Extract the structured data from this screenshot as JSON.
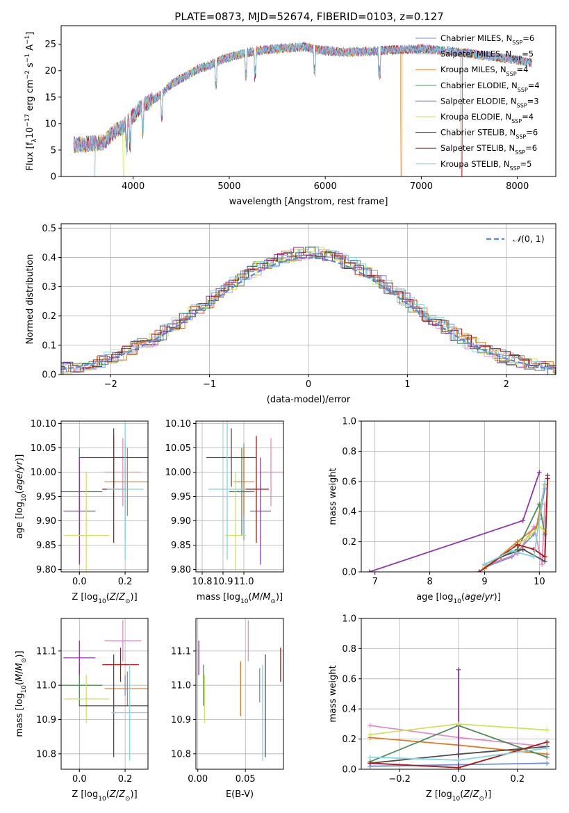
{
  "figure": {
    "title": "PLATE=0873, MJD=52674, FIBERID=0103, z=0.127"
  },
  "series_styles": [
    {
      "label": "Chabrier MILES, N",
      "sub": "SSP",
      "suffix": "=6",
      "color": "#6b8ee0"
    },
    {
      "label": "Salpeter MILES, N",
      "sub": "SSP",
      "suffix": "=5",
      "color": "#e48bc4"
    },
    {
      "label": "Kroupa MILES, N",
      "sub": "SSP",
      "suffix": "=4",
      "color": "#e07b22"
    },
    {
      "label": "Chabrier ELODIE, N",
      "sub": "SSP",
      "suffix": "=4",
      "color": "#4f8a5b"
    },
    {
      "label": "Salpeter ELODIE, N",
      "sub": "SSP",
      "suffix": "=3",
      "color": "#8e35b0"
    },
    {
      "label": "Kroupa ELODIE, N",
      "sub": "SSP",
      "suffix": "=4",
      "color": "#cfe35a"
    },
    {
      "label": "Chabrier STELIB, N",
      "sub": "SSP",
      "suffix": "=6",
      "color": "#4d4d4d"
    },
    {
      "label": "Salpeter STELIB, N",
      "sub": "SSP",
      "suffix": "=6",
      "color": "#b01818"
    },
    {
      "label": "Kroupa STELIB, N",
      "sub": "SSP",
      "suffix": "=5",
      "color": "#7fd6de"
    }
  ],
  "chart_data": [
    {
      "id": "spectrum",
      "type": "line",
      "xlabel": "wavelength [Angstrom, rest frame]",
      "ylabel": "Flux [f",
      "ylabel_parts": [
        "Flux [f",
        "λ",
        "10",
        "−17",
        " erg cm",
        "−2",
        " s",
        "−1",
        " A",
        "−1",
        "]"
      ],
      "xlim": [
        3250,
        8400
      ],
      "ylim": [
        0,
        28.5
      ],
      "xticks": [
        4000,
        5000,
        6000,
        7000,
        8000
      ],
      "yticks": [
        0,
        5,
        10,
        15,
        20,
        25
      ],
      "spectrum_envelope": {
        "x": [
          3400,
          3600,
          3700,
          3800,
          3900,
          4000,
          4100,
          4200,
          4300,
          4400,
          4500,
          4600,
          4700,
          4800,
          4900,
          5000,
          5200,
          5400,
          5600,
          5800,
          5900,
          6000,
          6200,
          6400,
          6600,
          6800,
          7000,
          7200,
          7400,
          7600,
          7800,
          8000,
          8150
        ],
        "y": [
          6.0,
          6.3,
          6.5,
          8.5,
          9.5,
          11.5,
          13.5,
          14.5,
          15.5,
          17.5,
          18.5,
          19.5,
          20.5,
          21.0,
          22.0,
          22.5,
          23.5,
          24.0,
          24.3,
          24.5,
          24.0,
          23.8,
          23.5,
          23.6,
          23.8,
          24.0,
          24.2,
          23.8,
          23.5,
          23.0,
          22.5,
          22.0,
          21.5
        ]
      },
      "legend_position": "upper right"
    },
    {
      "id": "residuals",
      "type": "histogram",
      "xlabel": "(data-model)/error",
      "ylabel": "Normed distribution",
      "xlim": [
        -2.5,
        2.5
      ],
      "ylim": [
        0,
        0.515
      ],
      "xticks": [
        -2,
        -1,
        0,
        1,
        2
      ],
      "yticks": [
        0.0,
        0.1,
        0.2,
        0.3,
        0.4,
        0.5
      ],
      "reference_curve": "N(0,1)",
      "reference_label": "(0, 1)",
      "grid": true,
      "legend_position": "upper right"
    },
    {
      "id": "age_vs_Z",
      "type": "scatter",
      "xlabel": "Z [log10(Z/Z☉)]",
      "ylabel": "age  [log10(age/yr)]",
      "xlim": [
        -0.08,
        0.3
      ],
      "ylim": [
        9.795,
        10.105
      ],
      "xticks": [
        0.0,
        0.2
      ],
      "yticks": [
        9.8,
        9.85,
        9.9,
        9.95,
        10.0,
        10.05,
        10.1
      ],
      "points": [
        {
          "series": 0,
          "x": 0.2,
          "xerr": 0.0,
          "y": 9.96,
          "yerr": 0.1
        },
        {
          "series": 1,
          "x": 0.19,
          "xerr": 0.08,
          "y": 10.0,
          "yerr": 0.07
        },
        {
          "series": 2,
          "x": 0.21,
          "xerr": 0.1,
          "y": 9.98,
          "yerr": 0.07
        },
        {
          "series": 3,
          "x": 0.0,
          "xerr": 0.1,
          "y": 9.96,
          "yerr": 0.09
        },
        {
          "series": 4,
          "x": 0.0,
          "xerr": 0.07,
          "y": 9.92,
          "yerr": 0.11
        },
        {
          "series": 5,
          "x": 0.03,
          "xerr": 0.1,
          "y": 9.87,
          "yerr": 0.13
        },
        {
          "series": 6,
          "x": 0.15,
          "xerr": 0.15,
          "y": 10.03,
          "yerr": 0.06
        },
        {
          "series": 7,
          "x": 0.15,
          "xerr": 0.05,
          "y": 9.965,
          "yerr": 0.11
        },
        {
          "series": 8,
          "x": 0.2,
          "xerr": 0.08,
          "y": 9.965,
          "yerr": 0.145
        }
      ],
      "grid": true
    },
    {
      "id": "age_vs_mass",
      "type": "scatter",
      "xlabel": "mass [log10(M/M☉)]",
      "xlim": [
        10.77,
        11.19
      ],
      "ylim": [
        9.795,
        10.105
      ],
      "xticks": [
        10.8,
        10.9,
        11.0
      ],
      "yticks": [
        9.8,
        9.85,
        9.9,
        9.95,
        10.0,
        10.05,
        10.1
      ],
      "points": [
        {
          "series": 0,
          "x": 11.0,
          "xerr": 0.03,
          "y": 9.96,
          "yerr": 0.1
        },
        {
          "series": 1,
          "x": 11.13,
          "xerr": 0.06,
          "y": 10.0,
          "yerr": 0.07
        },
        {
          "series": 2,
          "x": 11.0,
          "xerr": 0.05,
          "y": 9.98,
          "yerr": 0.07
        },
        {
          "series": 3,
          "x": 10.99,
          "xerr": 0.06,
          "y": 9.96,
          "yerr": 0.09
        },
        {
          "series": 4,
          "x": 11.08,
          "xerr": 0.05,
          "y": 9.92,
          "yerr": 0.11
        },
        {
          "series": 5,
          "x": 10.96,
          "xerr": 0.05,
          "y": 9.87,
          "yerr": 0.13
        },
        {
          "series": 6,
          "x": 10.94,
          "xerr": 0.12,
          "y": 10.03,
          "yerr": 0.06
        },
        {
          "series": 7,
          "x": 11.06,
          "xerr": 0.06,
          "y": 9.965,
          "yerr": 0.11
        },
        {
          "series": 8,
          "x": 10.92,
          "xerr": 0.09,
          "y": 9.965,
          "yerr": 0.145
        }
      ],
      "grid": true
    },
    {
      "id": "massweight_vs_age",
      "type": "line",
      "xlabel": "age  [log10(age/yr)]",
      "ylabel": "mass weight",
      "xlim": [
        6.75,
        10.3
      ],
      "ylim": [
        0,
        1.0
      ],
      "xticks": [
        7,
        8,
        9,
        10
      ],
      "yticks": [
        0.0,
        0.2,
        0.4,
        0.6,
        0.8,
        1.0
      ],
      "series": [
        {
          "series": 0,
          "x": [
            9.0,
            9.5,
            9.9,
            10.0,
            10.1
          ],
          "y": [
            0.03,
            0.1,
            0.25,
            0.35,
            0.55
          ]
        },
        {
          "series": 1,
          "x": [
            9.0,
            9.6,
            9.9,
            10.05,
            10.1
          ],
          "y": [
            0.04,
            0.12,
            0.3,
            0.05,
            0.45
          ]
        },
        {
          "series": 2,
          "x": [
            9.0,
            9.6,
            9.95,
            10.1
          ],
          "y": [
            0.02,
            0.2,
            0.3,
            0.58
          ]
        },
        {
          "series": 3,
          "x": [
            9.0,
            9.6,
            10.0,
            10.1
          ],
          "y": [
            0.05,
            0.15,
            0.45,
            0.25
          ]
        },
        {
          "series": 4,
          "x": [
            6.9,
            9.7,
            10.0
          ],
          "y": [
            0.0,
            0.34,
            0.66
          ]
        },
        {
          "series": 5,
          "x": [
            9.0,
            9.8,
            10.0,
            10.1
          ],
          "y": [
            0.03,
            0.23,
            0.3,
            0.27
          ]
        },
        {
          "series": 6,
          "x": [
            8.9,
            9.3,
            9.7,
            10.1,
            10.15
          ],
          "y": [
            0.0,
            0.1,
            0.15,
            0.07,
            0.64
          ]
        },
        {
          "series": 7,
          "x": [
            8.9,
            9.6,
            9.9,
            10.1,
            10.15
          ],
          "y": [
            0.0,
            0.18,
            0.15,
            0.1,
            0.62
          ]
        },
        {
          "series": 8,
          "x": [
            9.0,
            9.5,
            9.9,
            10.1
          ],
          "y": [
            0.05,
            0.14,
            0.1,
            0.6
          ]
        }
      ],
      "grid": true
    },
    {
      "id": "mass_vs_Z",
      "type": "scatter",
      "xlabel": "Z [log10(Z/Z☉)]",
      "ylabel": "mass [log10(M/M☉)]",
      "xlim": [
        -0.08,
        0.3
      ],
      "ylim": [
        10.755,
        11.195
      ],
      "xticks": [
        0.0,
        0.2
      ],
      "yticks": [
        10.8,
        10.9,
        11.0,
        11.1
      ],
      "points": [
        {
          "series": 0,
          "x": 0.2,
          "xerr": 0.0,
          "y": 11.0,
          "yerr": 0.03
        },
        {
          "series": 1,
          "x": 0.19,
          "xerr": 0.08,
          "y": 11.13,
          "yerr": 0.06
        },
        {
          "series": 2,
          "x": 0.21,
          "xerr": 0.1,
          "y": 10.99,
          "yerr": 0.05
        },
        {
          "series": 3,
          "x": 0.0,
          "xerr": 0.1,
          "y": 11.0,
          "yerr": 0.06
        },
        {
          "series": 4,
          "x": 0.0,
          "xerr": 0.07,
          "y": 11.08,
          "yerr": 0.05
        },
        {
          "series": 5,
          "x": 0.03,
          "xerr": 0.1,
          "y": 10.96,
          "yerr": 0.07
        },
        {
          "series": 6,
          "x": 0.15,
          "xerr": 0.15,
          "y": 10.94,
          "yerr": 0.15
        },
        {
          "series": 7,
          "x": 0.18,
          "xerr": 0.08,
          "y": 11.06,
          "yerr": 0.05
        },
        {
          "series": 8,
          "x": 0.22,
          "xerr": 0.08,
          "y": 10.92,
          "yerr": 0.14
        }
      ],
      "grid": true
    },
    {
      "id": "mass_vs_EBV",
      "type": "scatter",
      "xlabel": "E(B-V)",
      "xlim": [
        -0.002,
        0.09
      ],
      "ylim": [
        10.755,
        11.195
      ],
      "xticks": [
        0.0,
        0.05
      ],
      "yticks": [
        10.8,
        10.9,
        11.0,
        11.1
      ],
      "points": [
        {
          "series": 0,
          "x": 0.065,
          "y": 11.0,
          "yerr": 0.05
        },
        {
          "series": 1,
          "x": 0.053,
          "y": 11.13,
          "yerr": 0.06
        },
        {
          "series": 2,
          "x": 0.045,
          "y": 10.99,
          "yerr": 0.08
        },
        {
          "series": 3,
          "x": 0.006,
          "y": 11.0,
          "yerr": 0.06
        },
        {
          "series": 4,
          "x": 0.001,
          "y": 11.08,
          "yerr": 0.05
        },
        {
          "series": 5,
          "x": 0.007,
          "y": 10.96,
          "yerr": 0.07
        },
        {
          "series": 6,
          "x": 0.071,
          "y": 10.94,
          "yerr": 0.15
        },
        {
          "series": 7,
          "x": 0.087,
          "y": 11.06,
          "yerr": 0.05
        },
        {
          "series": 8,
          "x": 0.068,
          "y": 10.92,
          "yerr": 0.14
        }
      ],
      "grid": true
    },
    {
      "id": "massweight_vs_Z",
      "type": "line",
      "xlabel": "Z [log10(Z/Z☉)]",
      "ylabel": "mass weight",
      "xlim": [
        -0.33,
        0.33
      ],
      "ylim": [
        0,
        1.0
      ],
      "xticks": [
        -0.2,
        0.0,
        0.2
      ],
      "yticks": [
        0.0,
        0.2,
        0.4,
        0.6,
        0.8,
        1.0
      ],
      "series": [
        {
          "series": 0,
          "x": [
            -0.3,
            0.0,
            0.3
          ],
          "y": [
            0.02,
            0.03,
            0.04
          ]
        },
        {
          "series": 1,
          "x": [
            -0.3,
            0.0,
            0.3
          ],
          "y": [
            0.29,
            0.21,
            0.15
          ]
        },
        {
          "series": 2,
          "x": [
            -0.3,
            0.0,
            0.3
          ],
          "y": [
            0.21,
            0.16,
            0.1
          ]
        },
        {
          "series": 3,
          "x": [
            -0.3,
            0.0,
            0.3
          ],
          "y": [
            0.05,
            0.29,
            0.08
          ]
        },
        {
          "series": 4,
          "x": [
            0.0,
            0.0
          ],
          "y": [
            0.0,
            0.66
          ]
        },
        {
          "series": 5,
          "x": [
            -0.3,
            0.0,
            0.3
          ],
          "y": [
            0.23,
            0.3,
            0.26
          ]
        },
        {
          "series": 6,
          "x": [
            -0.3,
            0.0,
            0.3
          ],
          "y": [
            0.04,
            0.1,
            0.15
          ]
        },
        {
          "series": 7,
          "x": [
            -0.3,
            0.0,
            0.3
          ],
          "y": [
            0.04,
            0.01,
            0.18
          ]
        },
        {
          "series": 8,
          "x": [
            -0.3,
            0.0,
            0.3
          ],
          "y": [
            0.08,
            0.06,
            0.14
          ]
        }
      ],
      "grid": true
    }
  ]
}
